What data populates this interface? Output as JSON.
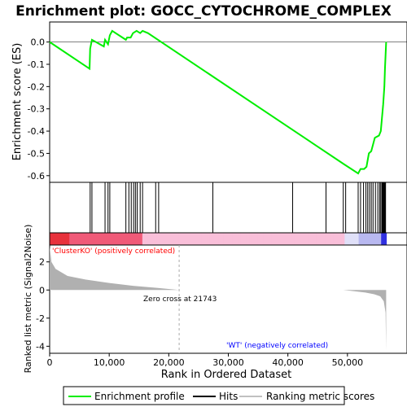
{
  "chart_data": {
    "type": "line",
    "title": "Enrichment plot: GOCC_CYTOCHROME_COMPLEX",
    "es_panel": {
      "ylabel": "Enrichment score (ES)",
      "ylim": [
        -0.63,
        0.09
      ],
      "yticks": [
        0.0,
        -0.1,
        -0.2,
        -0.3,
        -0.4,
        -0.5,
        -0.6
      ],
      "ytick_labels": [
        "0.0",
        "-0.1",
        "-0.2",
        "-0.3",
        "-0.4",
        "-0.5",
        "-0.6"
      ],
      "series_color": "#00ee00",
      "profile": [
        [
          0,
          0
        ],
        [
          6700,
          -0.12
        ],
        [
          6800,
          -0.03
        ],
        [
          7100,
          0.01
        ],
        [
          9100,
          -0.02
        ],
        [
          9300,
          0.01
        ],
        [
          9800,
          -0.01
        ],
        [
          10100,
          0.03
        ],
        [
          10500,
          0.05
        ],
        [
          12800,
          0.01
        ],
        [
          13000,
          0.02
        ],
        [
          13600,
          0.02
        ],
        [
          14000,
          0.04
        ],
        [
          14600,
          0.05
        ],
        [
          15200,
          0.04
        ],
        [
          15600,
          0.05
        ],
        [
          16500,
          0.04
        ],
        [
          49500,
          -0.55
        ],
        [
          51800,
          -0.59
        ],
        [
          52200,
          -0.57
        ],
        [
          52800,
          -0.57
        ],
        [
          53200,
          -0.56
        ],
        [
          53600,
          -0.5
        ],
        [
          54000,
          -0.49
        ],
        [
          54300,
          -0.46
        ],
        [
          54600,
          -0.43
        ],
        [
          55300,
          -0.42
        ],
        [
          55600,
          -0.4
        ],
        [
          55800,
          -0.34
        ],
        [
          56000,
          -0.28
        ],
        [
          56200,
          -0.2
        ],
        [
          56300,
          -0.12
        ],
        [
          56400,
          -0.06
        ],
        [
          56500,
          0.0
        ]
      ]
    },
    "hits": [
      6800,
      7100,
      9300,
      9800,
      10100,
      12800,
      13300,
      13700,
      14100,
      14400,
      14700,
      15200,
      15600,
      17800,
      18300,
      27400,
      40800,
      46400,
      49300,
      49700,
      51800,
      52200,
      52700,
      53100,
      53400,
      53700,
      54000,
      54300,
      54700,
      55100,
      55400,
      55600,
      55800,
      55900,
      56000,
      56100,
      56200,
      56300,
      56400
    ],
    "ranking_panel": {
      "ylabel": "Ranked list metric (Signal2Noise)",
      "ylim": [
        -4.5,
        3.2
      ],
      "yticks": [
        2,
        0,
        -2,
        -4
      ],
      "ytick_labels": [
        "2",
        "0",
        "-2",
        "-4"
      ],
      "metric": [
        [
          0,
          3.1
        ],
        [
          300,
          2.0
        ],
        [
          1000,
          1.5
        ],
        [
          3000,
          1.0
        ],
        [
          6000,
          0.75
        ],
        [
          10000,
          0.5
        ],
        [
          14000,
          0.3
        ],
        [
          18000,
          0.15
        ],
        [
          21743,
          0.0
        ],
        [
          49300,
          0.0
        ],
        [
          51000,
          -0.08
        ],
        [
          53000,
          -0.18
        ],
        [
          54500,
          -0.3
        ],
        [
          55500,
          -0.45
        ],
        [
          56100,
          -0.8
        ],
        [
          56400,
          -1.6
        ],
        [
          56500,
          -4.3
        ]
      ],
      "zero_cross_label": "Zero cross at 21743",
      "zero_cross": 21743,
      "pos_label": "'ClusterKO' (positively correlated)",
      "neg_label": "'WT' (negatively correlated)",
      "pos_color": "#ff0000",
      "neg_color": "#0000ff"
    },
    "xlabel": "Rank in Ordered Dataset",
    "xlim": [
      0,
      60000
    ],
    "xticks": [
      0,
      10000,
      20000,
      30000,
      40000,
      50000
    ],
    "xtick_labels": [
      "0",
      "10,000",
      "20,000",
      "30,000",
      "40,000",
      "50,000"
    ],
    "n_genes": 56600,
    "legend": [
      {
        "label": "Enrichment profile",
        "color": "#00ee00"
      },
      {
        "label": "Hits",
        "color": "#000000"
      },
      {
        "label": "Ranking metric scores",
        "color": "#c0c0c0"
      }
    ]
  }
}
